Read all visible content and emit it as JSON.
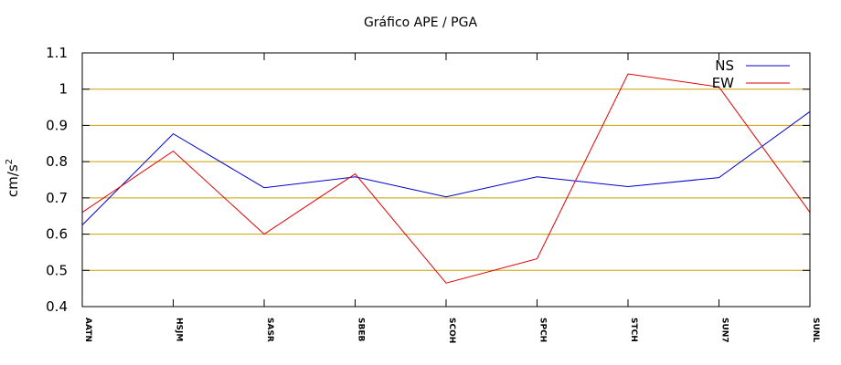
{
  "chart_data": {
    "type": "line",
    "title": "Gráfico  APE / PGA",
    "xlabel": "",
    "ylabel": "cm/s",
    "ylabel_superscript": "2",
    "ylim": [
      0.4,
      1.1
    ],
    "yticks": [
      "0.4",
      "0.5",
      "0.6",
      "0.7",
      "0.8",
      "0.9",
      "1",
      "1.1"
    ],
    "grid": "horizontal",
    "grid_color": "#c8a000",
    "legend_position": "top-right",
    "categories": [
      "AATN",
      "HSJM",
      "SASR",
      "SBEB",
      "SCOH",
      "SPCH",
      "STCH",
      "SUN7",
      "SUNL"
    ],
    "series": [
      {
        "name": "NS",
        "color": "#0000cc",
        "values": [
          0.625,
          0.877,
          0.728,
          0.758,
          0.703,
          0.758,
          0.731,
          0.756,
          0.938
        ]
      },
      {
        "name": "EW",
        "color": "#e00000",
        "values": [
          0.66,
          0.829,
          0.6,
          0.766,
          0.465,
          0.532,
          1.042,
          1.006,
          0.66
        ]
      }
    ]
  }
}
